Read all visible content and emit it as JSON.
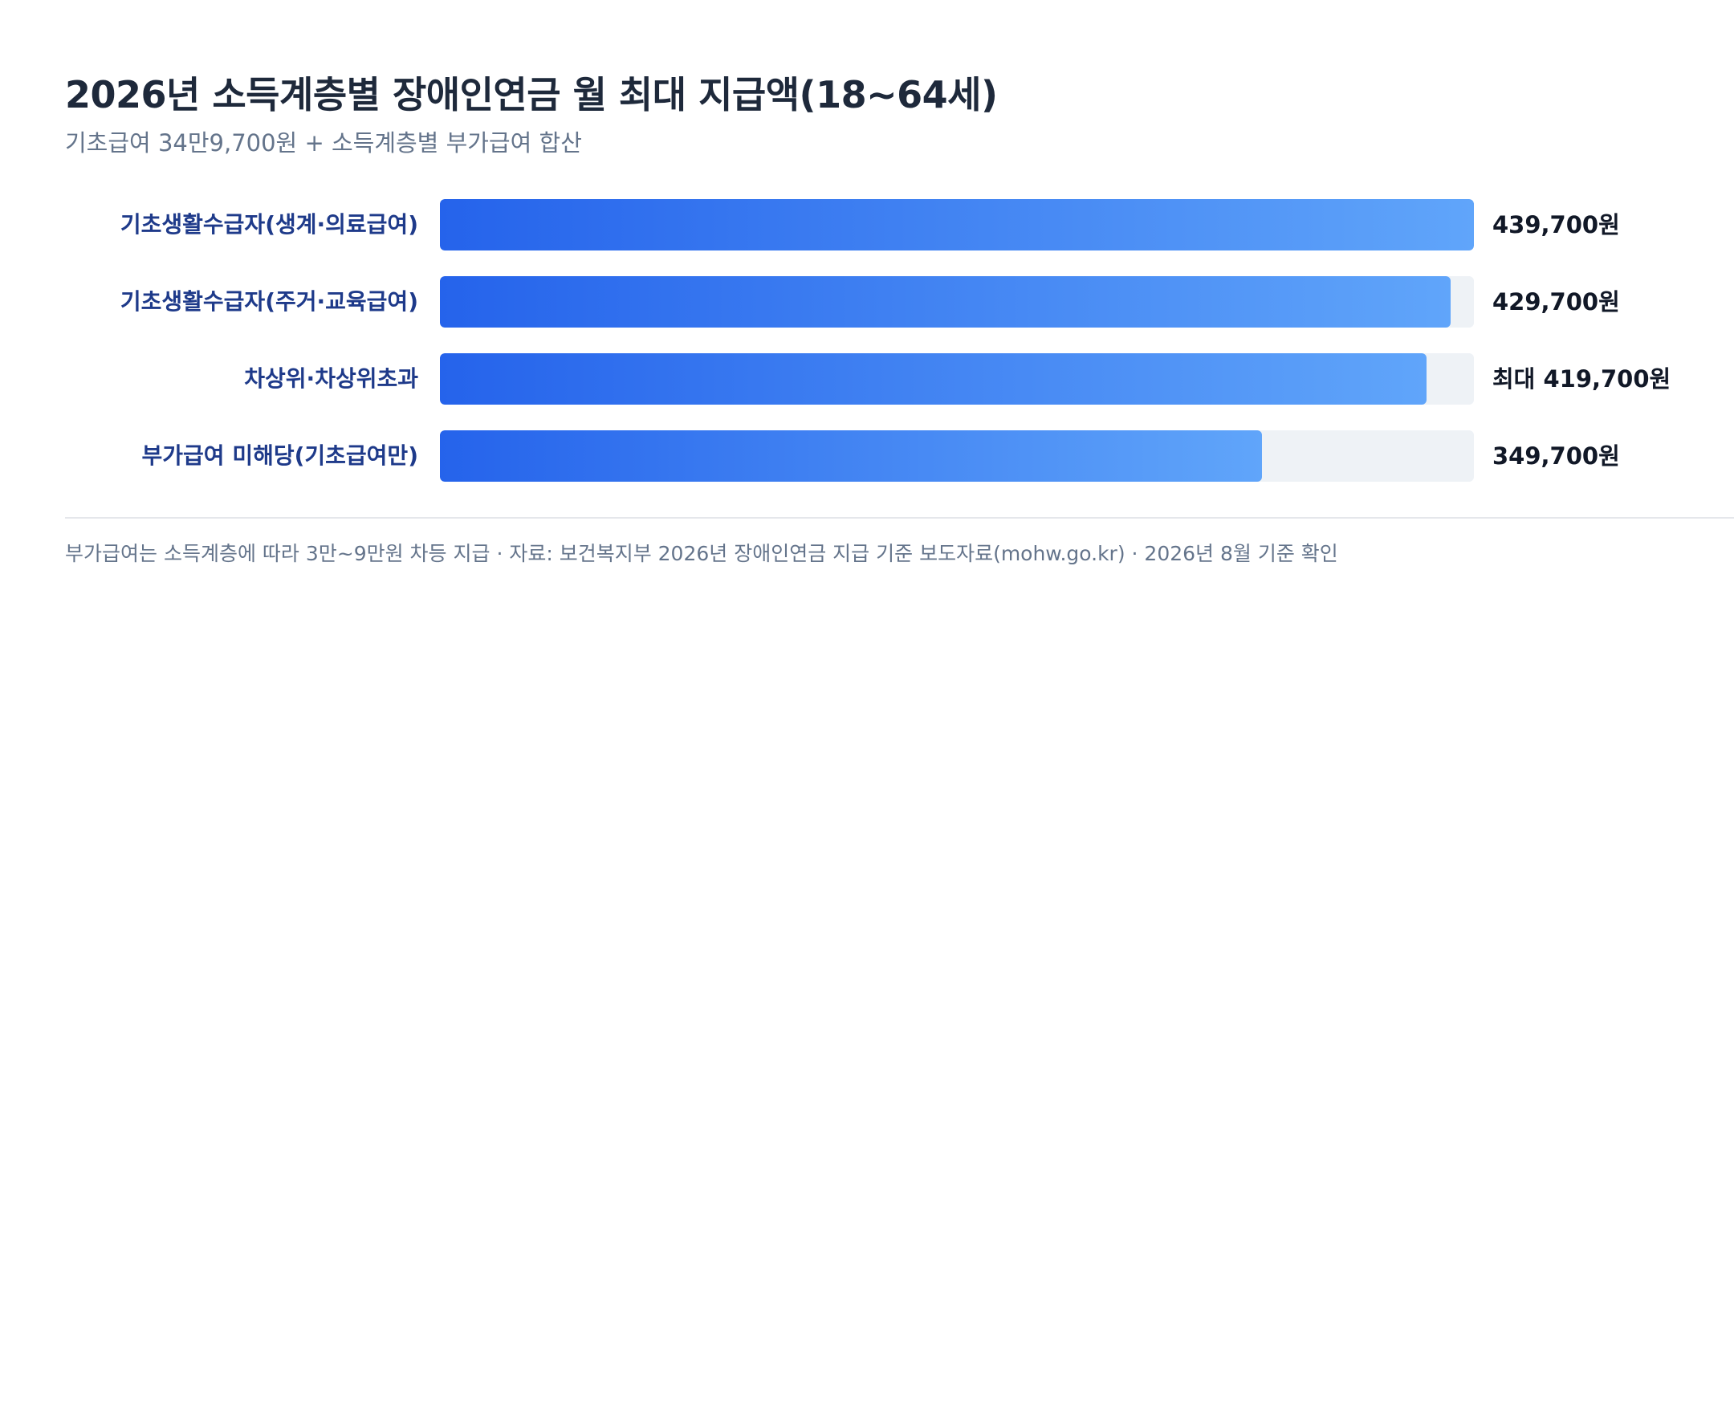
{
  "title": "2026년 소득계층별 장애인연금 월 최대 지급액(18~64세)",
  "subtitle": "기초급여 34만9,700원 + 소득계층별 부가급여 합산",
  "footnote": "부가급여는 소득계층에 따라 3만~9만원 차등 지급 · 자료: 보건복지부 2026년 장애인연금 지급 기준 보도자료(mohw.go.kr) · 2026년 8월 기준 확인",
  "colors": {
    "bar_start": "#2563eb",
    "bar_end": "#60a5fa",
    "track": "#eef2f6",
    "label": "#1e3a8a"
  },
  "chart_data": {
    "type": "bar",
    "orientation": "horizontal",
    "title": "2026년 소득계층별 장애인연금 월 최대 지급액(18~64세)",
    "subtitle": "기초급여 34만9,700원 + 소득계층별 부가급여 합산",
    "unit": "원",
    "xlim": [
      0,
      439700
    ],
    "grid": false,
    "legend": "none",
    "categories": [
      "기초생활수급자(생계·의료급여)",
      "기초생활수급자(주거·교육급여)",
      "차상위·차상위초과",
      "부가급여 미해당(기초급여만)"
    ],
    "values": [
      439700,
      429700,
      419700,
      349700
    ],
    "value_labels": [
      "439,700원",
      "429,700원",
      "최대 419,700원",
      "349,700원"
    ]
  }
}
